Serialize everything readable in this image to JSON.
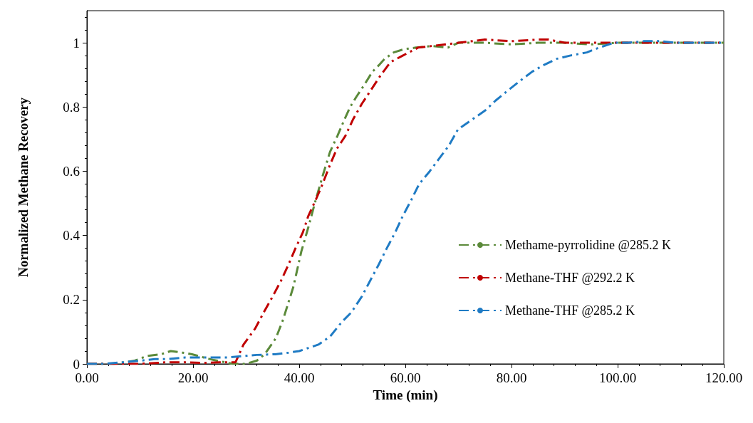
{
  "chart_data": {
    "type": "line",
    "xlabel": "Time (min)",
    "ylabel": "Normalized Methane Recovery",
    "xlim": [
      0,
      120
    ],
    "ylim": [
      0,
      1.1
    ],
    "xticks": [
      {
        "value": 0,
        "label": "0.00"
      },
      {
        "value": 20,
        "label": "20.00"
      },
      {
        "value": 40,
        "label": "40.00"
      },
      {
        "value": 60,
        "label": "60.00"
      },
      {
        "value": 80,
        "label": "80.00"
      },
      {
        "value": 100,
        "label": "100.00"
      },
      {
        "value": 120,
        "label": "120.00"
      }
    ],
    "yticks": [
      0,
      0.2,
      0.4,
      0.6,
      0.8,
      1
    ],
    "grid": false,
    "legend": "right",
    "marker": "none",
    "line_style": "dashed",
    "series": [
      {
        "name": "Methame-pyrrolidine @285.2 K",
        "color": "#5b8a3a",
        "x": [
          0,
          5,
          9,
          11.4,
          14,
          15.8,
          18,
          19.8,
          22,
          23.9,
          27.5,
          30,
          32,
          33.5,
          35.6,
          36.9,
          38.9,
          40.4,
          41.8,
          43.1,
          44.5,
          45.8,
          47.2,
          48.5,
          49.6,
          50.7,
          52.3,
          53.8,
          55,
          56.1,
          57.8,
          59.7,
          62,
          65,
          68,
          70,
          75,
          80,
          85,
          90,
          95,
          100,
          105,
          110,
          115,
          120
        ],
        "values": [
          0,
          0,
          0.01,
          0.025,
          0.03,
          0.04,
          0.035,
          0.03,
          0.02,
          0.012,
          0,
          0,
          0.01,
          0.03,
          0.08,
          0.135,
          0.24,
          0.35,
          0.43,
          0.51,
          0.59,
          0.66,
          0.71,
          0.76,
          0.8,
          0.83,
          0.87,
          0.91,
          0.93,
          0.95,
          0.97,
          0.98,
          0.985,
          0.99,
          0.985,
          1,
          1,
          0.995,
          1,
          1,
          0.995,
          1,
          1,
          1,
          1,
          1
        ]
      },
      {
        "name": "Methane-THF @292.2 K",
        "color": "#c00000",
        "x": [
          0,
          5,
          10,
          15,
          19,
          22,
          25,
          28,
          29.5,
          31.7,
          33.3,
          35,
          36.6,
          38,
          39.3,
          40.7,
          41.7,
          43.1,
          44.4,
          45.8,
          47.1,
          48.7,
          50.1,
          51.8,
          53.4,
          55.4,
          57.2,
          59.5,
          62.4,
          65,
          70,
          75,
          80,
          85,
          87,
          90,
          95,
          100,
          105,
          110,
          115,
          120
        ],
        "values": [
          0,
          0,
          0,
          0.005,
          0.005,
          0.003,
          0.005,
          0.005,
          0.06,
          0.11,
          0.16,
          0.21,
          0.26,
          0.31,
          0.36,
          0.41,
          0.46,
          0.51,
          0.56,
          0.62,
          0.67,
          0.71,
          0.76,
          0.81,
          0.85,
          0.9,
          0.94,
          0.96,
          0.985,
          0.99,
          1,
          1.01,
          1.005,
          1.01,
          1.01,
          1,
          1,
          1,
          1,
          1,
          1,
          1
        ]
      },
      {
        "name": "Methane-THF @285.2 K",
        "color": "#1f7bc4",
        "x": [
          0,
          3,
          6.8,
          10,
          12.8,
          15,
          18.5,
          21,
          23.9,
          26.5,
          29.7,
          32,
          35.5,
          38,
          40,
          41.8,
          43.6,
          45.8,
          48,
          49.8,
          51.8,
          53.4,
          55,
          56.5,
          58.1,
          59.5,
          61.1,
          62.6,
          64.6,
          66.4,
          68.2,
          69.9,
          72.5,
          75.1,
          77,
          79.2,
          81.5,
          83.9,
          86,
          88.5,
          91,
          94.2,
          96.5,
          99.3,
          102,
          105,
          108,
          111,
          115,
          120
        ],
        "values": [
          0,
          0,
          0.005,
          0.01,
          0.015,
          0.015,
          0.02,
          0.02,
          0.02,
          0.02,
          0.025,
          0.028,
          0.03,
          0.035,
          0.04,
          0.05,
          0.06,
          0.085,
          0.13,
          0.16,
          0.21,
          0.26,
          0.31,
          0.36,
          0.41,
          0.46,
          0.51,
          0.56,
          0.6,
          0.64,
          0.68,
          0.73,
          0.76,
          0.79,
          0.82,
          0.85,
          0.88,
          0.91,
          0.93,
          0.95,
          0.96,
          0.97,
          0.985,
          1,
          1,
          1.005,
          1.005,
          1,
          1,
          1
        ]
      }
    ]
  }
}
